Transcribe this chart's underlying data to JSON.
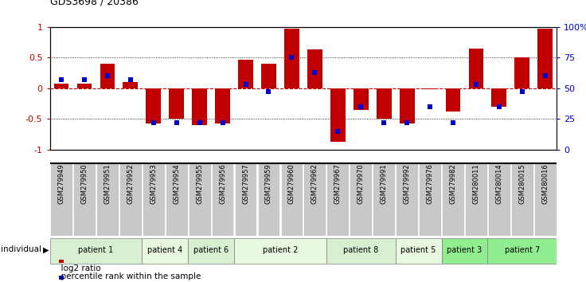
{
  "title": "GDS3698 / 20386",
  "samples": [
    "GSM279949",
    "GSM279950",
    "GSM279951",
    "GSM279952",
    "GSM279953",
    "GSM279954",
    "GSM279955",
    "GSM279956",
    "GSM279957",
    "GSM279959",
    "GSM279960",
    "GSM279962",
    "GSM279967",
    "GSM279970",
    "GSM279991",
    "GSM279992",
    "GSM279976",
    "GSM279982",
    "GSM280011",
    "GSM280014",
    "GSM280015",
    "GSM280016"
  ],
  "log2_ratio": [
    0.07,
    0.07,
    0.4,
    0.1,
    -0.57,
    -0.5,
    -0.6,
    -0.58,
    0.46,
    0.4,
    0.97,
    0.63,
    -0.87,
    -0.35,
    -0.5,
    -0.58,
    -0.02,
    -0.38,
    0.65,
    -0.3,
    0.5,
    0.97
  ],
  "percentile": [
    57,
    57,
    60,
    57,
    22,
    22,
    22,
    22,
    53,
    47,
    75,
    63,
    15,
    35,
    22,
    22,
    35,
    22,
    53,
    35,
    47,
    60
  ],
  "patients": [
    {
      "label": "patient 1",
      "start": 0,
      "end": 4,
      "color": "#d8f0d0"
    },
    {
      "label": "patient 4",
      "start": 4,
      "end": 6,
      "color": "#e8f8e0"
    },
    {
      "label": "patient 6",
      "start": 6,
      "end": 8,
      "color": "#d8f0d0"
    },
    {
      "label": "patient 2",
      "start": 8,
      "end": 12,
      "color": "#e8f8e0"
    },
    {
      "label": "patient 8",
      "start": 12,
      "end": 15,
      "color": "#d8f0d0"
    },
    {
      "label": "patient 5",
      "start": 15,
      "end": 17,
      "color": "#e8f8e0"
    },
    {
      "label": "patient 3",
      "start": 17,
      "end": 19,
      "color": "#90ee90"
    },
    {
      "label": "patient 7",
      "start": 19,
      "end": 22,
      "color": "#90ee90"
    }
  ],
  "bar_color": "#c00000",
  "dot_color": "#0000cc",
  "ylim_left": [
    -1,
    1
  ],
  "ylim_right": [
    0,
    100
  ],
  "yticks_left": [
    -1,
    -0.5,
    0,
    0.5,
    1
  ],
  "ytick_labels_left": [
    "-1",
    "-0.5",
    "0",
    "0.5",
    "1"
  ],
  "yticks_right": [
    0,
    25,
    50,
    75,
    100
  ],
  "ytick_labels_right": [
    "0",
    "25",
    "50",
    "75",
    "100%"
  ],
  "dotted_lines": [
    -0.5,
    0.5
  ],
  "legend_items": [
    "log2 ratio",
    "percentile rank within the sample"
  ],
  "legend_colors": [
    "#c00000",
    "#0000cc"
  ],
  "tick_bg_color": "#c8c8c8",
  "chart_bg_color": "#ffffff"
}
